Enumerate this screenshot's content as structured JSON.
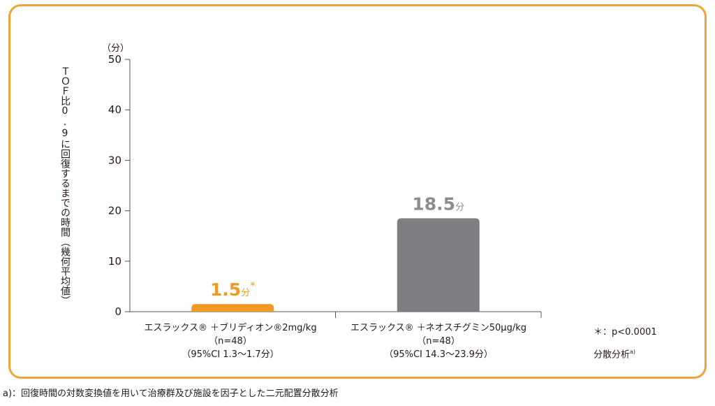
{
  "chart_data": {
    "type": "bar",
    "ylabel": "ＴＯＦ比0.9に回復するまでの時間（幾何平均値）",
    "y_unit": "（分）",
    "ylim": [
      0,
      50
    ],
    "yticks": [
      "0",
      "10",
      "20",
      "30",
      "40",
      "50"
    ],
    "categories": [
      {
        "line1": "エスラックス® ＋ブリディオン®2mg/kg",
        "line2": "（n=48）",
        "line3": "（95%CI  1.3〜1.7分）"
      },
      {
        "line1": "エスラックス® ＋ネオスチグミン50μg/kg",
        "line2": "（n=48）",
        "line3": "（95%CI  14.3〜23.9分）"
      }
    ],
    "values": [
      1.5,
      18.5
    ],
    "value_labels": [
      {
        "num": "1.5",
        "unit": "分",
        "mark": "*"
      },
      {
        "num": "18.5",
        "unit": "分",
        "mark": ""
      }
    ],
    "colors": [
      "#f09a26",
      "#7e7f82"
    ],
    "value_label_colors": [
      "#f09a26",
      "#8c8d90"
    ],
    "axis_color": "#555555",
    "grid": false
  },
  "notes": {
    "significance": "＊：p<0.0001",
    "method": "分散分析",
    "method_sup": "a)"
  },
  "footnote": "a)：回復時間の対数変換値を用いて治療群及び施設を因子とした二元配置分散分析"
}
